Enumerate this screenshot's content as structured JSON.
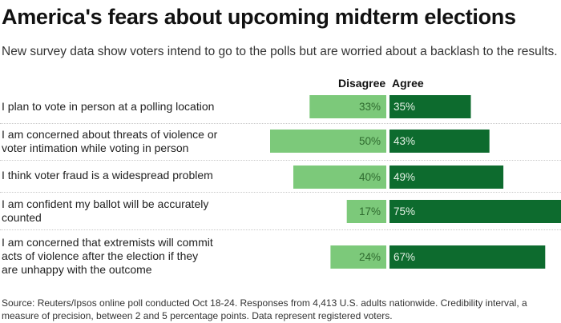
{
  "title": "America's fears about upcoming midterm elections",
  "subtitle": "New survey data show voters intend to go to the polls but are worried about a backlash to the results.",
  "source": "Source: Reuters/Ipsos online poll conducted Oct 18-24. Responses from 4,413 U.S. adults nationwide. Credibility interval, a measure of precision, between 2 and 5 percentage points. Data represent registered voters.",
  "colors": {
    "disagree": "#7cc97a",
    "agree": "#0d6b2e",
    "disagree_text": "#2f6b2f",
    "agree_text": "#e6f2e6"
  },
  "chart_data": {
    "type": "bar",
    "orientation": "diverging-horizontal",
    "title": "America's fears about upcoming midterm elections",
    "series_names": [
      "Disagree",
      "Agree"
    ],
    "categories": [
      "I plan to vote in person at a polling location",
      "I am concerned about threats of violence or voter intimation while voting in person",
      "I think voter fraud is a widespread problem",
      "I am confident my ballot will be accurately counted",
      "I am concerned that extremists will commit acts of violence after the election if they are unhappy with the outcome"
    ],
    "series": [
      {
        "name": "Disagree",
        "values": [
          33,
          50,
          40,
          17,
          24
        ],
        "labels": [
          "33%",
          "50%",
          "40%",
          "17%",
          "24%"
        ]
      },
      {
        "name": "Agree",
        "values": [
          35,
          43,
          49,
          75,
          67
        ],
        "labels": [
          "35%",
          "43%",
          "49%",
          "75%",
          "67%"
        ]
      }
    ],
    "unit": "percent"
  }
}
